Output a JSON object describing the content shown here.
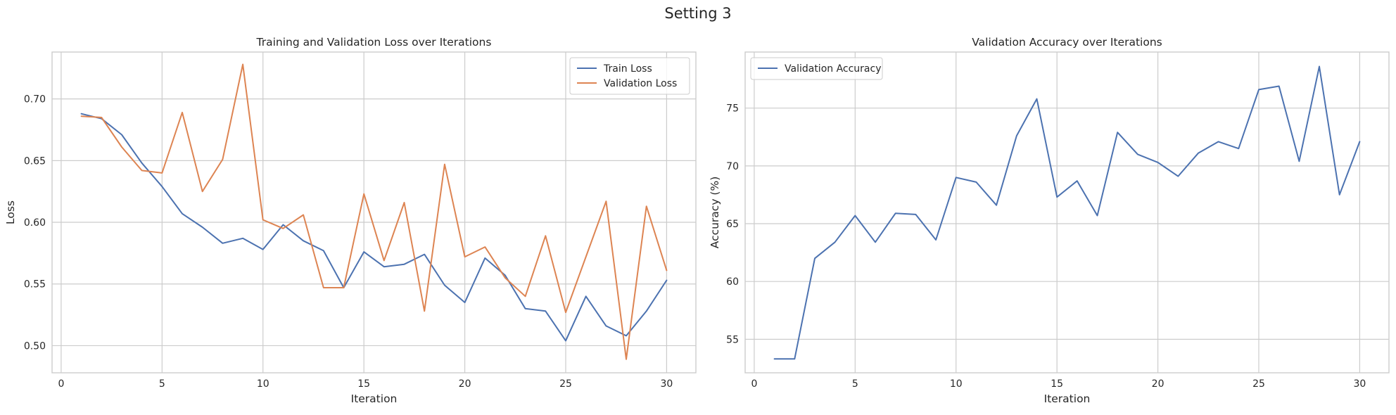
{
  "figure": {
    "title": "Setting 3"
  },
  "chart_data": [
    {
      "type": "line",
      "title": "Training and Validation Loss over Iterations",
      "xlabel": "Iteration",
      "ylabel": "Loss",
      "xlim": [
        -0.45,
        31.45
      ],
      "ylim": [
        0.478,
        0.738
      ],
      "xticks": [
        0,
        5,
        10,
        15,
        20,
        25,
        30
      ],
      "yticks": [
        0.5,
        0.55,
        0.6,
        0.65,
        0.7
      ],
      "ytick_format": 2,
      "grid": true,
      "legend": "top-right",
      "x": [
        1,
        2,
        3,
        4,
        5,
        6,
        7,
        8,
        9,
        10,
        11,
        12,
        13,
        14,
        15,
        16,
        17,
        18,
        19,
        20,
        21,
        22,
        23,
        24,
        25,
        26,
        27,
        28,
        29,
        30
      ],
      "series": [
        {
          "name": "Train Loss",
          "color": "#4c72b0",
          "values": [
            0.688,
            0.684,
            0.671,
            0.648,
            0.629,
            0.607,
            0.596,
            0.583,
            0.587,
            0.578,
            0.598,
            0.585,
            0.577,
            0.547,
            0.576,
            0.564,
            0.566,
            0.574,
            0.549,
            0.535,
            0.571,
            0.557,
            0.53,
            0.528,
            0.504,
            0.54,
            0.516,
            0.508,
            0.528,
            0.553
          ]
        },
        {
          "name": "Validation Loss",
          "color": "#dd8452",
          "values": [
            0.686,
            0.685,
            0.661,
            0.642,
            0.64,
            0.689,
            0.625,
            0.651,
            0.728,
            0.602,
            0.595,
            0.606,
            0.547,
            0.547,
            0.623,
            0.569,
            0.616,
            0.528,
            0.647,
            0.572,
            0.58,
            0.555,
            0.54,
            0.589,
            0.527,
            0.572,
            0.617,
            0.489,
            0.613,
            0.561
          ]
        }
      ]
    },
    {
      "type": "line",
      "title": "Validation Accuracy over Iterations",
      "xlabel": "Iteration",
      "ylabel": "Accuracy (%)",
      "xlim": [
        -0.45,
        31.45
      ],
      "ylim": [
        52.1,
        79.85
      ],
      "xticks": [
        0,
        5,
        10,
        15,
        20,
        25,
        30
      ],
      "yticks": [
        55,
        60,
        65,
        70,
        75
      ],
      "ytick_format": 0,
      "grid": true,
      "legend": "top-left",
      "x": [
        1,
        2,
        3,
        4,
        5,
        6,
        7,
        8,
        9,
        10,
        11,
        12,
        13,
        14,
        15,
        16,
        17,
        18,
        19,
        20,
        21,
        22,
        23,
        24,
        25,
        26,
        27,
        28,
        29,
        30
      ],
      "series": [
        {
          "name": "Validation Accuracy",
          "color": "#4c72b0",
          "values": [
            53.3,
            53.3,
            62.0,
            63.4,
            65.7,
            63.4,
            65.9,
            65.8,
            63.6,
            69.0,
            68.6,
            66.6,
            72.6,
            75.8,
            67.3,
            68.7,
            65.7,
            72.9,
            71.0,
            70.3,
            69.1,
            71.1,
            72.1,
            71.5,
            76.6,
            76.9,
            70.4,
            78.6,
            67.5,
            72.1
          ]
        }
      ]
    }
  ]
}
